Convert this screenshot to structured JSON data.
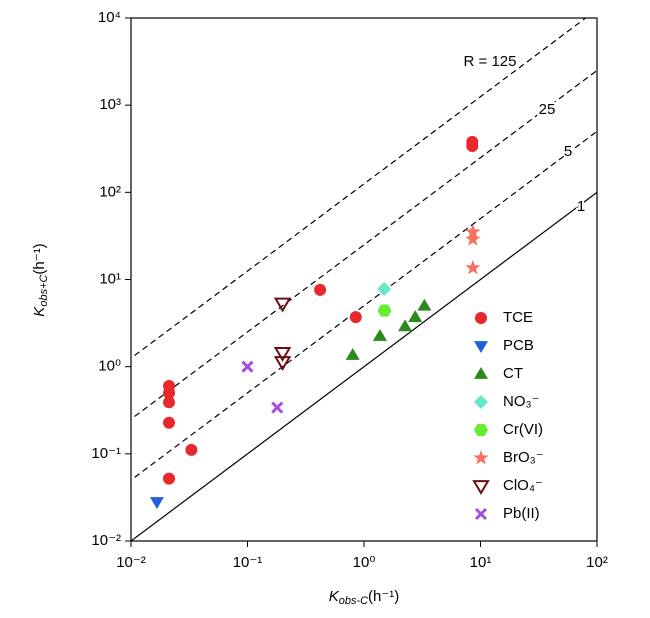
{
  "chart_data": {
    "type": "scatter",
    "xlabel": {
      "main": "K",
      "sub": "obs-C",
      "unit": "(h⁻¹)"
    },
    "ylabel": {
      "main": "K",
      "sub": "obs+C",
      "unit": "(h⁻¹)"
    },
    "log_x": true,
    "log_y": true,
    "xlim": [
      0.01,
      100
    ],
    "ylim": [
      0.01,
      10000
    ],
    "xticks": [
      {
        "value": 0.01,
        "label": "10⁻²"
      },
      {
        "value": 0.1,
        "label": "10⁻¹"
      },
      {
        "value": 1,
        "label": "10⁰"
      },
      {
        "value": 10,
        "label": "10¹"
      },
      {
        "value": 100,
        "label": "10²"
      }
    ],
    "yticks": [
      {
        "value": 0.01,
        "label": "10⁻²"
      },
      {
        "value": 0.1,
        "label": "10⁻¹"
      },
      {
        "value": 1,
        "label": "10⁰"
      },
      {
        "value": 10,
        "label": "10¹"
      },
      {
        "value": 100,
        "label": "10²"
      },
      {
        "value": 1000,
        "label": "10³"
      },
      {
        "value": 10000,
        "label": "10⁴"
      }
    ],
    "ratio_lines": [
      {
        "value": 125,
        "label": "R = 125"
      },
      25,
      5,
      1
    ],
    "ratio_line_styles": [
      "dashed",
      "dashed",
      "dashed",
      "solid"
    ],
    "legend": "lower right",
    "series": [
      {
        "name": "TCE",
        "color": "#e8282b",
        "marker": "circle",
        "x": [
          0.0212,
          0.0212,
          0.0212,
          0.0212,
          0.0212,
          0.033,
          0.42,
          0.85,
          8.5,
          8.5
        ],
        "values": [
          0.6,
          0.5,
          0.39,
          0.227,
          0.052,
          0.111,
          7.6,
          3.7,
          379,
          340
        ]
      },
      {
        "name": "PCB",
        "color": "#2060e0",
        "marker": "triangle-down",
        "x": [
          0.0167
        ],
        "values": [
          0.028
        ]
      },
      {
        "name": "CT",
        "color": "#2a8a1a",
        "marker": "triangle-up",
        "x": [
          0.8,
          1.37,
          2.25,
          2.75,
          3.3
        ],
        "values": [
          1.36,
          2.25,
          2.9,
          3.7,
          5.0
        ]
      },
      {
        "name": "NO₃⁻",
        "color": "#66e8c8",
        "marker": "diamond",
        "x": [
          1.49
        ],
        "values": [
          7.8
        ]
      },
      {
        "name": "Cr(VI)",
        "color": "#66ee33",
        "marker": "hexagon",
        "x": [
          1.5
        ],
        "values": [
          4.4
        ]
      },
      {
        "name": "BrO₃⁻",
        "color": "#f87060",
        "marker": "star",
        "x": [
          8.6,
          8.6,
          8.6
        ],
        "values": [
          35,
          29,
          13.6
        ]
      },
      {
        "name": "ClO₄⁻",
        "color": "#6b1010",
        "marker": "open-triangle-down",
        "x": [
          0.2,
          0.2,
          0.2
        ],
        "values": [
          5.3,
          1.44,
          1.13
        ]
      },
      {
        "name": "Pb(II)",
        "color": "#a050e0",
        "marker": "x",
        "x": [
          0.1,
          0.18
        ],
        "values": [
          1.0,
          0.34
        ]
      }
    ]
  }
}
